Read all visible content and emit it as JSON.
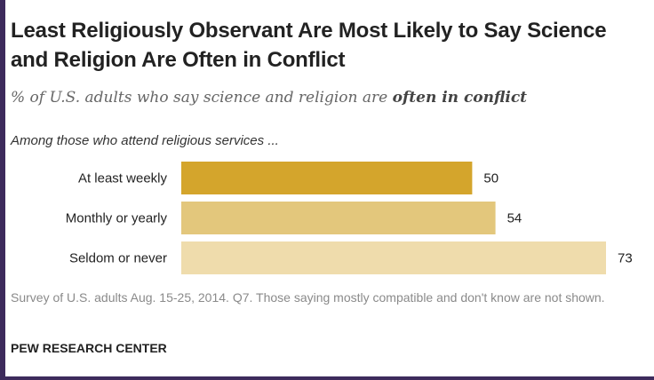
{
  "chart_data": {
    "type": "bar",
    "orientation": "horizontal",
    "title": "Least Religiously Observant Are Most Likely to Say Science and Religion Are Often in Conflict",
    "subtitle": {
      "prefix": "% of U.S. adults who say science and religion are ",
      "emphasis": "often in conflict"
    },
    "group_label": "Among those who attend religious services ...",
    "categories": [
      "At least weekly",
      "Monthly or yearly",
      "Seldom or never"
    ],
    "values": [
      50,
      54,
      73
    ],
    "colors": [
      "#d4a52c",
      "#e3c77c",
      "#efdcac"
    ],
    "xlim": [
      0,
      73
    ],
    "grid": false,
    "legend": "none"
  },
  "note": "Survey of U.S. adults Aug. 15-25, 2014. Q7. Those saying mostly compatible and don't know are not shown.",
  "source": "PEW RESEARCH CENTER"
}
